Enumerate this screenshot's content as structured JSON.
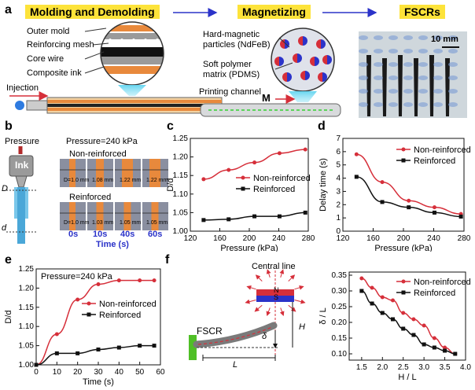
{
  "panel_a": {
    "label": "a",
    "step1": "Molding and Demolding",
    "step2": "Magnetizing",
    "step3": "FSCRs",
    "outer_mold": "Outer mold",
    "reinforcing_mesh": "Reinforcing mesh",
    "core_wire": "Core wire",
    "composite_ink": "Composite ink",
    "injection": "Injection",
    "hard_magnetic_1": "Hard-magnetic",
    "hard_magnetic_2": "particles (NdFeB)",
    "soft_polymer_1": "Soft polymer",
    "soft_polymer_2": "matrix (PDMS)",
    "printing_channel": "Printing channel",
    "m_label": "M",
    "scale_bar": "10 mm"
  },
  "panel_b": {
    "label": "b",
    "pressure_label": "Pressure",
    "pressure_value": "Pressure=240 kPa",
    "ink": "Ink",
    "non_reinforced": "Non-reinforced",
    "reinforced": "Reinforced",
    "D": "D",
    "d": "d",
    "time_axis": "Time (s)",
    "times": [
      "0s",
      "10s",
      "40s",
      "60s"
    ],
    "nonreinf_ratios": [
      "D=1.0 mm",
      "1.08 mm",
      "1.22 mm",
      "1.22 mm"
    ],
    "reinf_ratios": [
      "D=1.0 mm",
      "1.03 mm",
      "1.05 mm",
      "1.05 mm"
    ]
  },
  "panel_f": {
    "label": "f",
    "central_line": "Central line",
    "N": "N",
    "S": "S",
    "fscr": "FSCR",
    "H": "H",
    "L": "L",
    "delta": "δ"
  },
  "colors": {
    "red": "#d62f3a",
    "black": "#111111",
    "yellow": "#fde33a",
    "blue": "#2b33c9",
    "orange": "#e8893c"
  },
  "chart_data": [
    {
      "id": "c",
      "type": "scatter+line",
      "xlabel": "Pressure (kPa)",
      "ylabel": "D/d",
      "xlim": [
        120,
        280
      ],
      "ylim": [
        1.0,
        1.25
      ],
      "xticks": [
        120,
        160,
        200,
        240,
        280
      ],
      "yticks": [
        1.0,
        1.05,
        1.1,
        1.15,
        1.2,
        1.25
      ],
      "series": [
        {
          "name": "Non-reinforced",
          "color": "red",
          "x": [
            138,
            172,
            207,
            241,
            276
          ],
          "y": [
            1.14,
            1.165,
            1.185,
            1.21,
            1.22
          ]
        },
        {
          "name": "Reinforced",
          "color": "black",
          "x": [
            138,
            172,
            207,
            241,
            276
          ],
          "y": [
            1.03,
            1.032,
            1.04,
            1.04,
            1.05
          ]
        }
      ]
    },
    {
      "id": "d",
      "type": "scatter+line",
      "xlabel": "Pressure (kPa)",
      "ylabel": "Delay time (s)",
      "xlim": [
        120,
        280
      ],
      "ylim": [
        0,
        7
      ],
      "xticks": [
        120,
        160,
        200,
        240,
        280
      ],
      "yticks": [
        0,
        1,
        2,
        3,
        4,
        5,
        6,
        7
      ],
      "series": [
        {
          "name": "Non-reinforced",
          "color": "red",
          "x": [
            138,
            172,
            207,
            241,
            276
          ],
          "y": [
            5.8,
            3.7,
            2.3,
            1.8,
            1.3
          ]
        },
        {
          "name": "Reinforced",
          "color": "black",
          "x": [
            138,
            172,
            207,
            241,
            276
          ],
          "y": [
            4.1,
            2.2,
            1.8,
            1.4,
            1.1
          ]
        }
      ]
    },
    {
      "id": "e",
      "type": "scatter+line",
      "title": "Pressure=240 kPa",
      "xlabel": "Time (s)",
      "ylabel": "D/d",
      "xlim": [
        0,
        60
      ],
      "ylim": [
        1.0,
        1.25
      ],
      "xticks": [
        0,
        10,
        20,
        30,
        40,
        50,
        60
      ],
      "yticks": [
        1.0,
        1.05,
        1.1,
        1.15,
        1.2,
        1.25
      ],
      "series": [
        {
          "name": "Non-reinforced",
          "color": "red",
          "x": [
            0,
            10,
            20,
            30,
            40,
            50,
            57
          ],
          "y": [
            1.0,
            1.08,
            1.17,
            1.21,
            1.22,
            1.22,
            1.22
          ]
        },
        {
          "name": "Reinforced",
          "color": "black",
          "x": [
            0,
            10,
            20,
            30,
            40,
            50,
            57
          ],
          "y": [
            1.0,
            1.03,
            1.03,
            1.04,
            1.045,
            1.05,
            1.05
          ]
        }
      ]
    },
    {
      "id": "f",
      "type": "scatter+line",
      "xlabel": "H / L",
      "ylabel": "δ / L",
      "xlim": [
        1.2,
        4.0
      ],
      "ylim": [
        0.08,
        0.36
      ],
      "xticks": [
        1.5,
        2.0,
        2.5,
        3.0,
        3.5,
        4.0
      ],
      "yticks": [
        0.1,
        0.15,
        0.2,
        0.25,
        0.3,
        0.35
      ],
      "series": [
        {
          "name": "Non-reinforced",
          "color": "red",
          "x": [
            1.5,
            1.75,
            2.0,
            2.25,
            2.5,
            2.75,
            3.0,
            3.25,
            3.5,
            3.75
          ],
          "y": [
            0.34,
            0.31,
            0.28,
            0.27,
            0.23,
            0.21,
            0.19,
            0.15,
            0.12,
            0.1
          ]
        },
        {
          "name": "Reinforced",
          "color": "black",
          "x": [
            1.5,
            1.75,
            2.0,
            2.25,
            2.5,
            2.75,
            3.0,
            3.25,
            3.5,
            3.75
          ],
          "y": [
            0.3,
            0.26,
            0.23,
            0.21,
            0.18,
            0.16,
            0.13,
            0.12,
            0.11,
            0.1
          ]
        }
      ]
    }
  ]
}
